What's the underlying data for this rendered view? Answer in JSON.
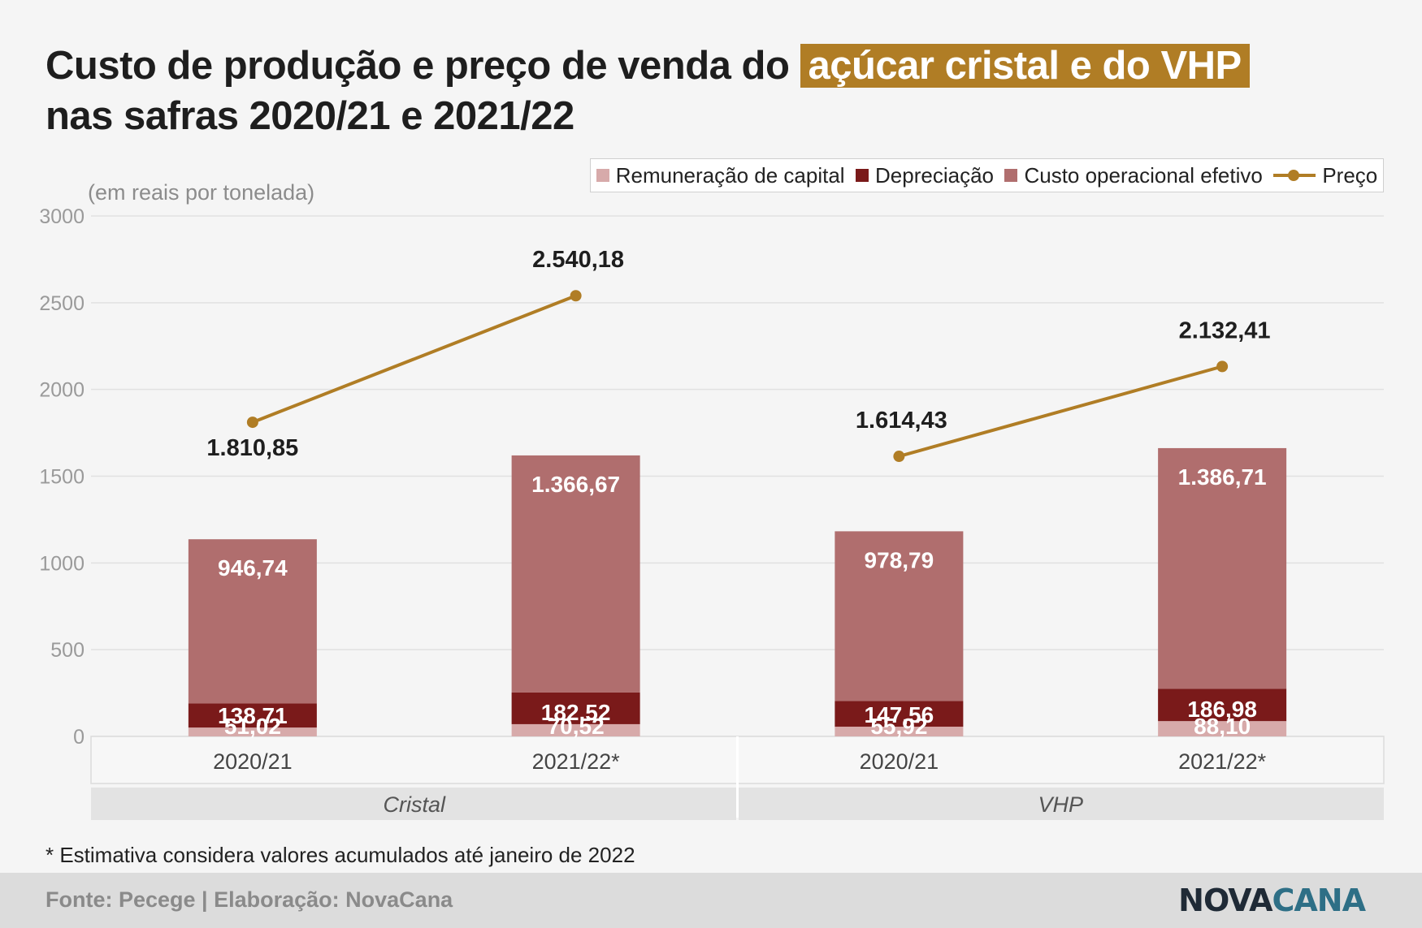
{
  "title": {
    "line1_pre": "Custo de produção e preço de venda do",
    "line1_highlight": "açúcar cristal e do VHP",
    "line2": "nas safras 2020/21 e 2021/22"
  },
  "unit_label": "(em reais por tonelada)",
  "legend": [
    {
      "label": "Remuneração de capital",
      "color": "#d7aaaa",
      "kind": "box"
    },
    {
      "label": "Depreciação",
      "color": "#7a1a1a",
      "kind": "box"
    },
    {
      "label": "Custo operacional efetivo",
      "color": "#b06e6e",
      "kind": "box"
    },
    {
      "label": "Preço",
      "color": "#b07d25",
      "kind": "line"
    }
  ],
  "footnote": "* Estimativa considera valores acumulados até janeiro de 2022",
  "footer": {
    "source": "Fonte: Pecege | Elaboração: NovaCana",
    "logo_part1": "NOVA",
    "logo_part2": "CANA"
  },
  "chart_data": {
    "type": "bar",
    "stacked": true,
    "ylim": [
      0,
      3000
    ],
    "yticks": [
      0,
      500,
      1000,
      1500,
      2000,
      2500,
      3000
    ],
    "grid": true,
    "legend_position": "top-right",
    "groups": [
      "Cristal",
      "VHP"
    ],
    "categories": [
      "2020/21",
      "2021/22*",
      "2020/21",
      "2021/22*"
    ],
    "series": [
      {
        "name": "Remuneração de capital",
        "color": "#d7aaaa",
        "values": [
          51.02,
          70.52,
          55.92,
          88.1
        ],
        "labels": [
          "51,02",
          "70,52",
          "55,92",
          "88,10"
        ]
      },
      {
        "name": "Depreciação",
        "color": "#7a1a1a",
        "values": [
          138.71,
          182.52,
          147.56,
          186.98
        ],
        "labels": [
          "138,71",
          "182,52",
          "147,56",
          "186,98"
        ]
      },
      {
        "name": "Custo operacional efetivo",
        "color": "#b06e6e",
        "values": [
          946.74,
          1366.67,
          978.79,
          1386.71
        ],
        "labels": [
          "946,74",
          "1.366,67",
          "978,79",
          "1.386,71"
        ]
      }
    ],
    "line_series": {
      "name": "Preço",
      "color": "#b07d25",
      "values": [
        1810.85,
        2540.18,
        1614.43,
        2132.41
      ],
      "labels": [
        "1.810,85",
        "2.540,18",
        "1.614,43",
        "2.132,41"
      ],
      "segments": [
        [
          0,
          1
        ],
        [
          2,
          3
        ]
      ]
    }
  }
}
